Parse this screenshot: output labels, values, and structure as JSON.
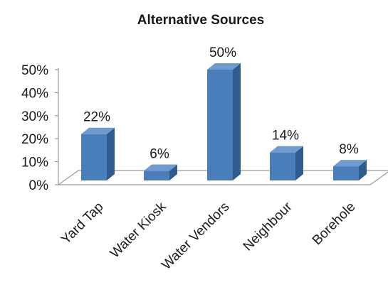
{
  "chart_data": {
    "type": "bar",
    "title": "Alternative Sources",
    "categories": [
      "Yard Tap",
      "Water Kiosk",
      "Water Vendors",
      "Neighbour",
      "Borehole"
    ],
    "values": [
      22,
      6,
      50,
      14,
      8
    ],
    "data_labels": [
      "22%",
      "6%",
      "50%",
      "14%",
      "8%"
    ],
    "ylim": [
      0,
      50
    ],
    "yticks": [
      0,
      10,
      20,
      30,
      40,
      50
    ],
    "ytick_labels": [
      "0%",
      "10%",
      "20%",
      "30%",
      "40%",
      "50%"
    ],
    "xlabel": "",
    "ylabel": "",
    "grid": false,
    "legend": "none",
    "bar_color": "#4a7ebb",
    "bar_side_color": "#2f5c8f",
    "bar_top_color": "#6f9bd1"
  }
}
